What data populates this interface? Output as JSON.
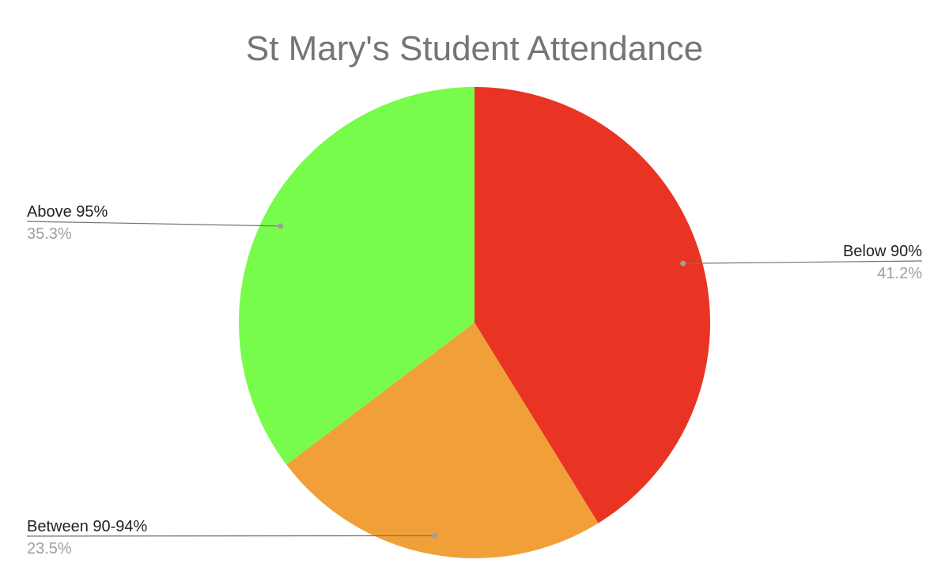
{
  "chart_data": {
    "type": "pie",
    "title": "St Mary's Student Attendance",
    "slices": [
      {
        "label": "Below 90%",
        "value": 41.2,
        "pct_label": "41.2%",
        "color": "#e93424"
      },
      {
        "label": "Between 90-94%",
        "value": 23.5,
        "pct_label": "23.5%",
        "color": "#f1a039"
      },
      {
        "label": "Above 95%",
        "value": 35.3,
        "pct_label": "35.3%",
        "color": "#77fc4b"
      }
    ],
    "start_angle_deg": 0,
    "direction": "clockwise",
    "legend": "none"
  }
}
